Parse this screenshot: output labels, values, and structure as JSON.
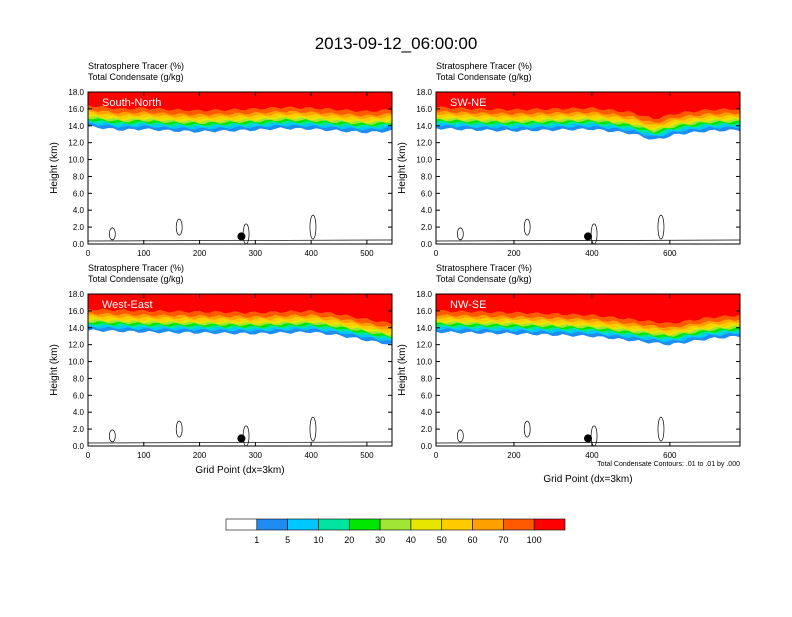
{
  "title": "2013-09-12_06:00:00",
  "chart_data": [
    {
      "type": "heatmap",
      "title": "South-North",
      "field_labels": [
        "Stratosphere Tracer   (%)",
        "Total Condensate   (g/kg)"
      ],
      "xlim": [
        0,
        545
      ],
      "ylim": [
        0,
        18
      ],
      "xticks": [
        0,
        100,
        200,
        300,
        400,
        500
      ],
      "yticks": [
        "0.0",
        "2.0",
        "4.0",
        "6.0",
        "8.0",
        "10.0",
        "12.0",
        "14.0",
        "16.0",
        "18.0"
      ],
      "ylabel": "Height (km)",
      "xlabel": "",
      "marker_x": 275,
      "tropopause_km": [
        [
          0,
          14.4
        ],
        [
          30,
          14.2
        ],
        [
          60,
          14.0
        ],
        [
          100,
          14.1
        ],
        [
          150,
          13.9
        ],
        [
          200,
          13.8
        ],
        [
          250,
          13.9
        ],
        [
          300,
          14.0
        ],
        [
          350,
          14.2
        ],
        [
          400,
          14.1
        ],
        [
          450,
          13.9
        ],
        [
          500,
          13.7
        ],
        [
          545,
          13.9
        ]
      ]
    },
    {
      "type": "heatmap",
      "title": "SW-NE",
      "field_labels": [
        "Stratosphere Tracer   (%)",
        "Total Condensate   (g/kg)"
      ],
      "xlim": [
        0,
        780
      ],
      "ylim": [
        0,
        18
      ],
      "xticks": [
        0,
        200,
        400,
        600
      ],
      "yticks": [
        "0.0",
        "2.0",
        "4.0",
        "6.0",
        "8.0",
        "10.0",
        "12.0",
        "14.0",
        "16.0",
        "18.0"
      ],
      "ylabel": "Height (km)",
      "xlabel": "",
      "marker_x": 390,
      "tropopause_km": [
        [
          0,
          14.2
        ],
        [
          100,
          14.0
        ],
        [
          200,
          13.9
        ],
        [
          300,
          14.0
        ],
        [
          400,
          14.1
        ],
        [
          500,
          13.6
        ],
        [
          560,
          12.8
        ],
        [
          620,
          13.5
        ],
        [
          700,
          13.9
        ],
        [
          780,
          14.0
        ]
      ]
    },
    {
      "type": "heatmap",
      "title": "West-East",
      "field_labels": [
        "Stratosphere Tracer   (%)",
        "Total Condensate   (g/kg)"
      ],
      "xlim": [
        0,
        545
      ],
      "ylim": [
        0,
        18
      ],
      "xticks": [
        0,
        100,
        200,
        300,
        400,
        500
      ],
      "yticks": [
        "0.0",
        "2.0",
        "4.0",
        "6.0",
        "8.0",
        "10.0",
        "12.0",
        "14.0",
        "16.0",
        "18.0"
      ],
      "ylabel": "Height (km)",
      "xlabel": "Grid Point (dx=3km)",
      "marker_x": 275,
      "tropopause_km": [
        [
          0,
          14.2
        ],
        [
          100,
          14.0
        ],
        [
          200,
          13.9
        ],
        [
          300,
          13.8
        ],
        [
          350,
          13.9
        ],
        [
          400,
          14.0
        ],
        [
          450,
          13.6
        ],
        [
          500,
          13.0
        ],
        [
          545,
          12.5
        ]
      ]
    },
    {
      "type": "heatmap",
      "title": "NW-SE",
      "field_labels": [
        "Stratosphere Tracer   (%)",
        "Total Condensate   (g/kg)"
      ],
      "xlim": [
        0,
        780
      ],
      "ylim": [
        0,
        18
      ],
      "xticks": [
        0,
        200,
        400,
        600
      ],
      "yticks": [
        "0.0",
        "2.0",
        "4.0",
        "6.0",
        "8.0",
        "10.0",
        "12.0",
        "14.0",
        "16.0",
        "18.0"
      ],
      "ylabel": "Height (km)",
      "xlabel": "Grid Point (dx=3km)",
      "marker_x": 390,
      "contour_note": "Total Condensate Contours: .01 to .01 by .000",
      "tropopause_km": [
        [
          0,
          14.0
        ],
        [
          200,
          13.8
        ],
        [
          400,
          13.5
        ],
        [
          500,
          13.0
        ],
        [
          600,
          12.5
        ],
        [
          700,
          13.2
        ],
        [
          780,
          13.5
        ]
      ]
    }
  ],
  "colorbar": {
    "colors": [
      "#ffffff",
      "#1e8cf0",
      "#00c8ff",
      "#00e6a0",
      "#00e600",
      "#a0e632",
      "#e6e600",
      "#ffcc00",
      "#ffa000",
      "#ff5a00",
      "#ff0000"
    ],
    "labels": [
      "1",
      "5",
      "10",
      "20",
      "30",
      "40",
      "50",
      "60",
      "70",
      "100"
    ]
  }
}
